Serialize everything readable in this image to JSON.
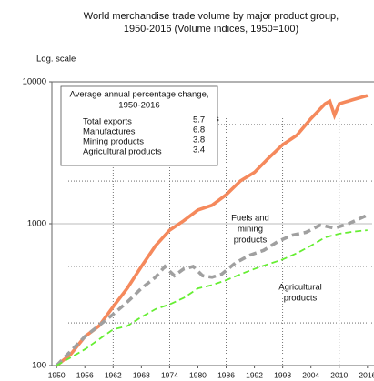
{
  "chart_data": {
    "type": "line",
    "title": [
      "World merchandise trade volume by major product group,",
      "1950-2016  (Volume indices, 1950=100)"
    ],
    "y_axis_note": "Log. scale",
    "log_scale": true,
    "grid": true,
    "xlim": [
      1949,
      2017
    ],
    "xticks": [
      1950,
      1956,
      1962,
      1968,
      1974,
      1980,
      1986,
      1992,
      1998,
      2004,
      2010,
      2016
    ],
    "ylim": [
      100,
      10000
    ],
    "yticks": [
      100,
      1000,
      10000
    ],
    "series": [
      {
        "name": "Manufactures",
        "color": "#f5895c",
        "dash": "none",
        "x": [
          1950,
          1953,
          1956,
          1959,
          1962,
          1965,
          1968,
          1971,
          1974,
          1977,
          1980,
          1983,
          1986,
          1989,
          1992,
          1995,
          1998,
          2001,
          2004,
          2007,
          2008,
          2009,
          2010,
          2013,
          2016
        ],
        "values": [
          100,
          120,
          160,
          190,
          260,
          350,
          500,
          700,
          900,
          1050,
          1250,
          1350,
          1600,
          2000,
          2300,
          2900,
          3600,
          4200,
          5500,
          7000,
          7300,
          5800,
          7000,
          7500,
          8000
        ]
      },
      {
        "name": "Fuels and mining products",
        "color": "#a0a0a0",
        "dash": "8 5",
        "x": [
          1950,
          1956,
          1962,
          1965,
          1968,
          1971,
          1973,
          1975,
          1977,
          1979,
          1981,
          1983,
          1985,
          1988,
          1991,
          1994,
          1997,
          2000,
          2003,
          2006,
          2009,
          2012,
          2016
        ],
        "values": [
          100,
          160,
          230,
          280,
          350,
          420,
          500,
          430,
          480,
          500,
          430,
          420,
          440,
          530,
          600,
          650,
          750,
          830,
          870,
          980,
          930,
          1000,
          1150
        ]
      },
      {
        "name": "Agricultural products",
        "color": "#66ee33",
        "dash": "7 4",
        "x": [
          1950,
          1956,
          1962,
          1965,
          1968,
          1971,
          1974,
          1977,
          1980,
          1983,
          1986,
          1989,
          1992,
          1995,
          1998,
          2001,
          2004,
          2007,
          2010,
          2013,
          2016
        ],
        "values": [
          100,
          130,
          180,
          190,
          220,
          250,
          270,
          300,
          350,
          370,
          400,
          440,
          480,
          520,
          560,
          620,
          700,
          800,
          850,
          880,
          900
        ]
      }
    ],
    "annotations": [
      [
        "Manufactures"
      ],
      [
        "Fuels and",
        "mining",
        "products"
      ],
      [
        "Agricultural",
        "products"
      ]
    ],
    "inset": {
      "title": [
        "Average annual percentage change,",
        "1950-2016"
      ],
      "rows": [
        [
          "Total exports",
          "5.7"
        ],
        [
          "Manufactures",
          "6.8"
        ],
        [
          "Mining products",
          "3.8"
        ],
        [
          "Agricultural products",
          "3.4"
        ]
      ]
    }
  }
}
